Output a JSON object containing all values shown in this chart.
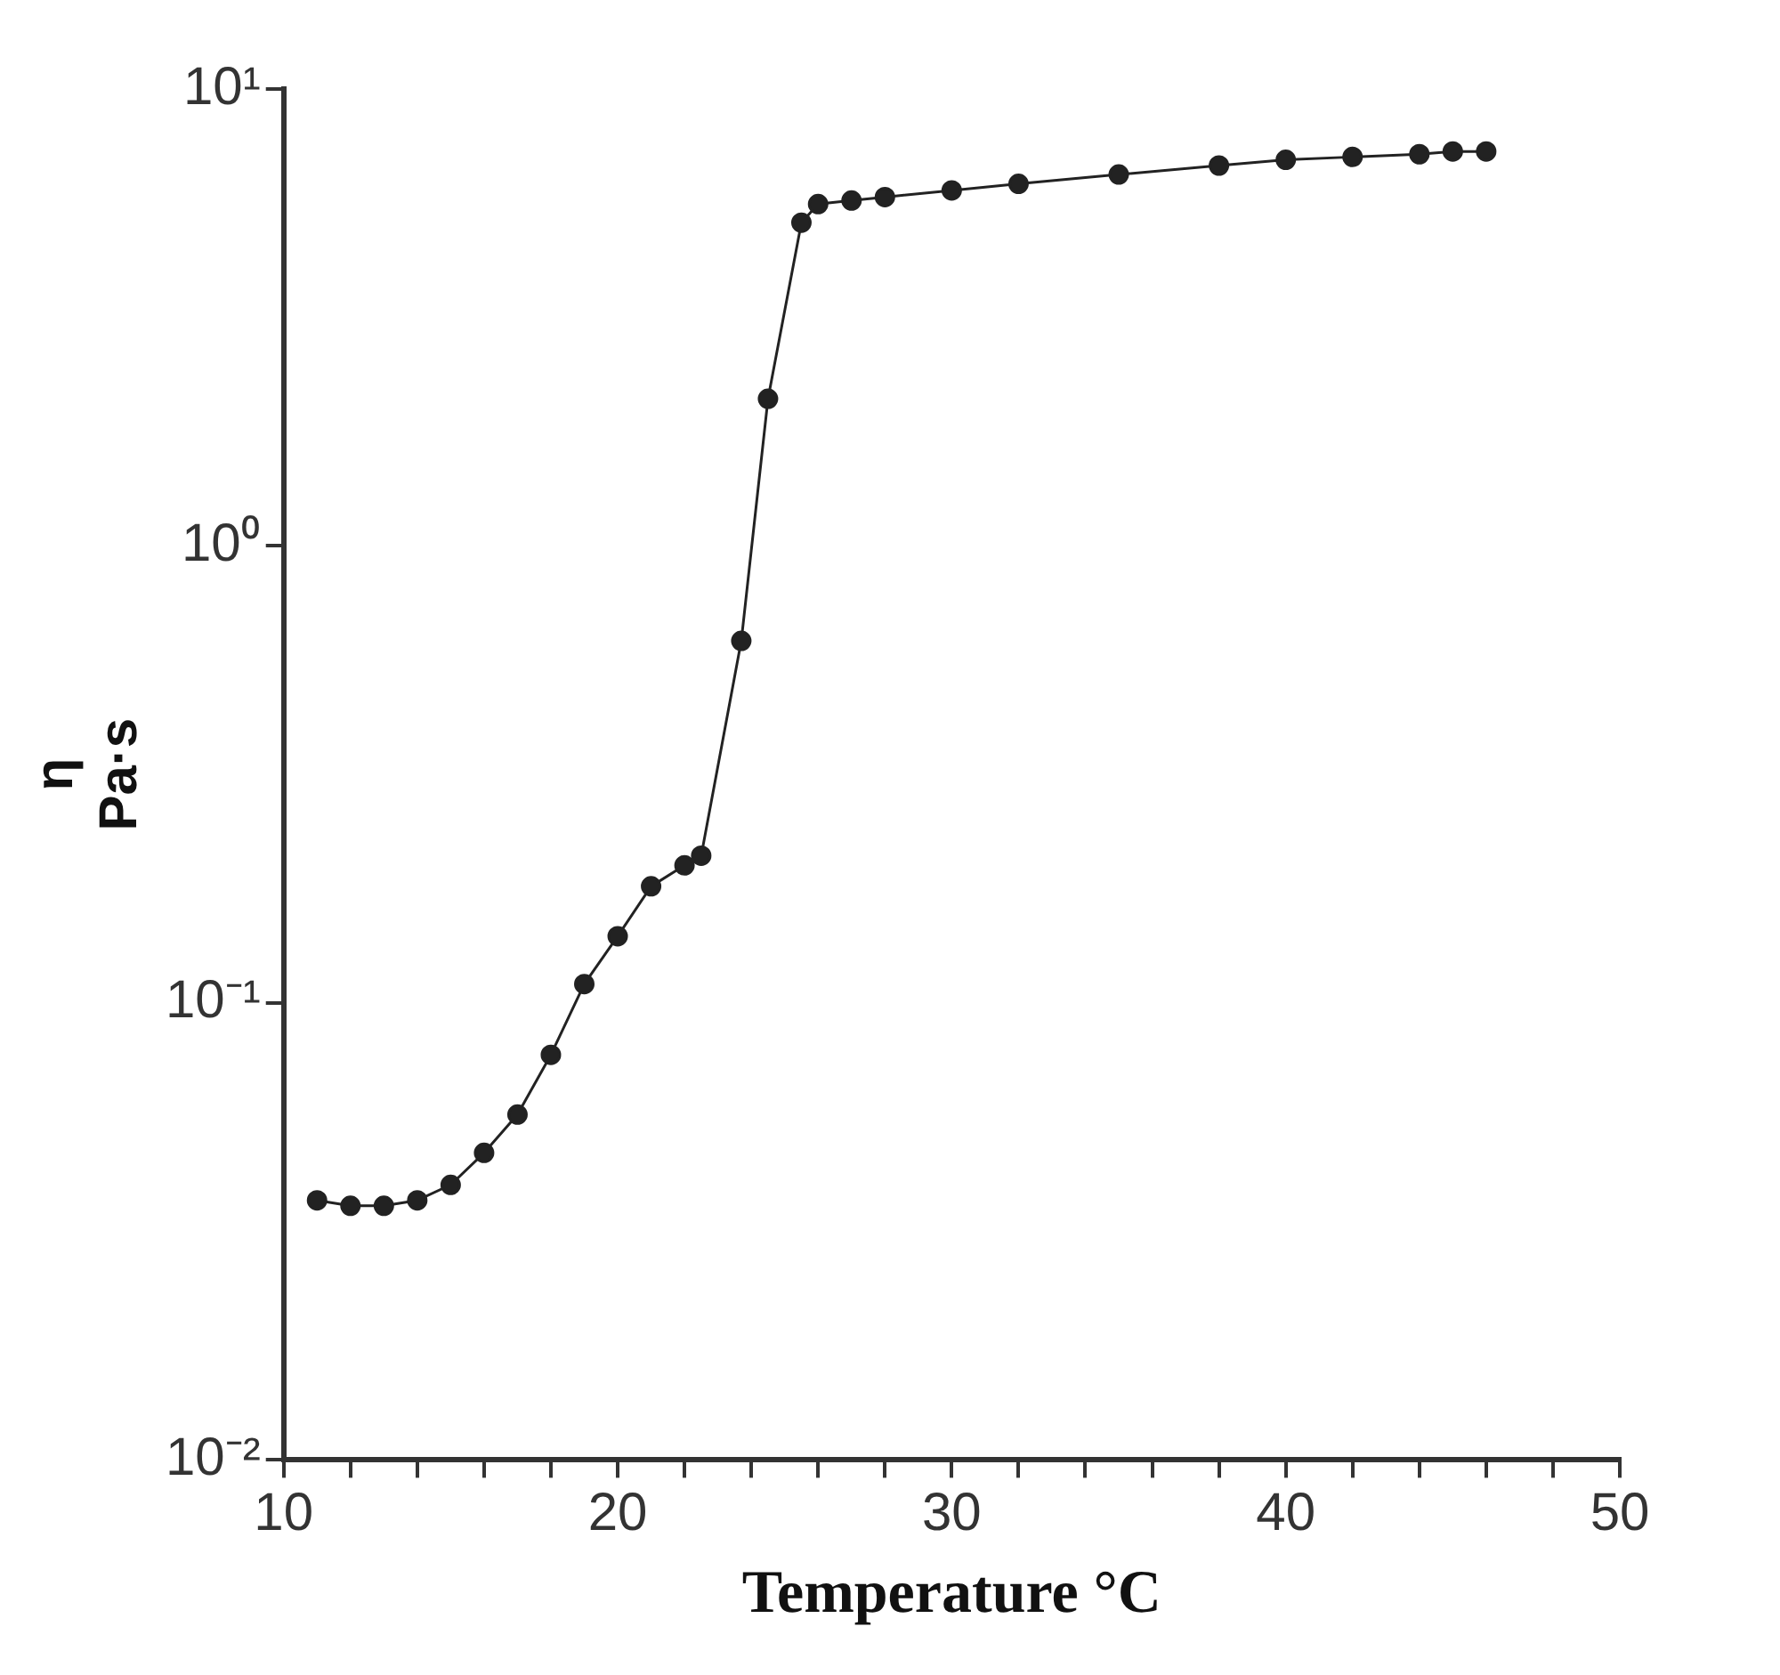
{
  "chart_data": {
    "type": "line",
    "xlabel": "Temperature °C",
    "ylabel": "η Pa·s",
    "x": [
      11,
      12,
      13,
      14,
      15,
      16,
      17,
      18,
      19,
      20,
      21,
      22,
      22.5,
      23.7,
      24.5,
      25.5,
      26,
      27,
      28,
      30,
      32,
      35,
      38,
      40,
      42,
      44,
      45,
      46
    ],
    "series": [
      {
        "color": "#222222",
        "values": [
          0.037,
          0.036,
          0.036,
          0.037,
          0.04,
          0.047,
          0.057,
          0.077,
          0.11,
          0.14,
          0.18,
          0.2,
          0.21,
          0.62,
          2.1,
          5.1,
          5.6,
          5.7,
          5.8,
          6.0,
          6.2,
          6.5,
          6.8,
          7.0,
          7.1,
          7.2,
          7.3,
          7.3
        ]
      }
    ],
    "log": "y",
    "xlim": [
      10,
      50
    ],
    "ylim": [
      0.01,
      10
    ],
    "xticks": [
      10,
      {
        "value": 12,
        "label": null
      },
      {
        "value": 14,
        "label": null
      },
      {
        "value": 16,
        "label": null
      },
      {
        "value": 18,
        "label": null
      },
      20,
      {
        "value": 22,
        "label": null
      },
      {
        "value": 24,
        "label": null
      },
      {
        "value": 26,
        "label": null
      },
      {
        "value": 28,
        "label": null
      },
      30,
      {
        "value": 32,
        "label": null
      },
      {
        "value": 34,
        "label": null
      },
      {
        "value": 36,
        "label": null
      },
      {
        "value": 38,
        "label": null
      },
      40,
      {
        "value": 42,
        "label": null
      },
      {
        "value": 44,
        "label": null
      },
      {
        "value": 46,
        "label": null
      },
      {
        "value": 48,
        "label": null
      },
      50
    ],
    "yticks": [
      {
        "value": 0.01,
        "label": "10⁻²"
      },
      {
        "value": 0.1,
        "label": "10⁻¹"
      },
      {
        "value": 1,
        "label": "10⁰"
      },
      {
        "value": 10,
        "label": "10¹"
      }
    ],
    "grid": false,
    "legend": false,
    "marker": "circle",
    "line_style": "solid"
  }
}
